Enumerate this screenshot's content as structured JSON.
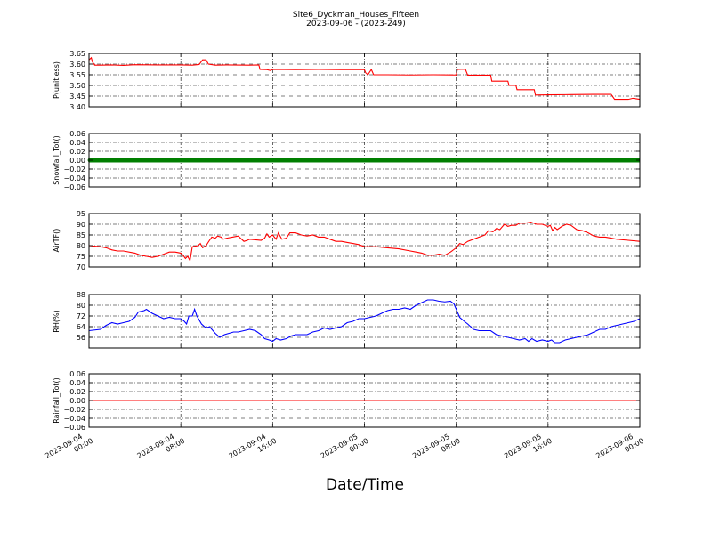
{
  "figure": {
    "title_line1": "Site6_Dyckman_Houses_Fifteen",
    "title_line2": "2023-09-06 - (2023-249)",
    "xlabel": "Date/Time"
  },
  "chart_data": {
    "type": "line",
    "x_ticks": [
      {
        "value": 0,
        "line1": "2023-09-04",
        "line2": "00:00"
      },
      {
        "value": 8,
        "line1": "2023-09-04",
        "line2": "08:00"
      },
      {
        "value": 16,
        "line1": "2023-09-04",
        "line2": "16:00"
      },
      {
        "value": 24,
        "line1": "2023-09-05",
        "line2": "00:00"
      },
      {
        "value": 32,
        "line1": "2023-09-05",
        "line2": "08:00"
      },
      {
        "value": 40,
        "line1": "2023-09-05",
        "line2": "16:00"
      },
      {
        "value": 48,
        "line1": "2023-09-06",
        "line2": "00:00"
      }
    ],
    "xlim": [
      0,
      48
    ],
    "grid": true,
    "panels": [
      {
        "ylabel": "P(unitless)",
        "ylim": [
          3.4,
          3.65
        ],
        "yticks": [
          "3.65",
          "3.60",
          "3.55",
          "3.50",
          "3.45",
          "3.40"
        ],
        "ytick_values": [
          3.65,
          3.6,
          3.55,
          3.5,
          3.45,
          3.4
        ],
        "color": "#ff0000",
        "marker": "none",
        "points": [
          [
            0,
            3.62
          ],
          [
            0.2,
            3.63
          ],
          [
            0.3,
            3.61
          ],
          [
            0.5,
            3.595
          ],
          [
            1,
            3.595
          ],
          [
            2,
            3.596
          ],
          [
            3,
            3.594
          ],
          [
            4,
            3.597
          ],
          [
            6,
            3.596
          ],
          [
            8,
            3.596
          ],
          [
            9,
            3.595
          ],
          [
            9.6,
            3.598
          ],
          [
            9.9,
            3.62
          ],
          [
            10.2,
            3.62
          ],
          [
            10.4,
            3.6
          ],
          [
            11,
            3.595
          ],
          [
            12,
            3.596
          ],
          [
            14,
            3.595
          ],
          [
            14.8,
            3.596
          ],
          [
            14.9,
            3.575
          ],
          [
            15.5,
            3.574
          ],
          [
            15.8,
            3.57
          ],
          [
            16,
            3.575
          ],
          [
            18,
            3.574
          ],
          [
            20,
            3.575
          ],
          [
            22,
            3.574
          ],
          [
            24,
            3.574
          ],
          [
            24.1,
            3.56
          ],
          [
            24.3,
            3.55
          ],
          [
            24.6,
            3.575
          ],
          [
            24.8,
            3.55
          ],
          [
            26,
            3.55
          ],
          [
            28,
            3.549
          ],
          [
            30,
            3.55
          ],
          [
            32,
            3.549
          ],
          [
            32.1,
            3.575
          ],
          [
            32.8,
            3.576
          ],
          [
            33,
            3.548
          ],
          [
            35,
            3.548
          ],
          [
            35.1,
            3.52
          ],
          [
            36.5,
            3.52
          ],
          [
            36.6,
            3.5
          ],
          [
            37.2,
            3.5
          ],
          [
            37.3,
            3.48
          ],
          [
            38.8,
            3.48
          ],
          [
            38.9,
            3.455
          ],
          [
            40,
            3.456
          ],
          [
            42,
            3.457
          ],
          [
            44,
            3.458
          ],
          [
            45.5,
            3.458
          ],
          [
            45.8,
            3.435
          ],
          [
            47,
            3.435
          ],
          [
            47.4,
            3.44
          ],
          [
            48,
            3.435
          ]
        ]
      },
      {
        "ylabel": "Snowfall_Tot()",
        "ylim": [
          -0.06,
          0.06
        ],
        "yticks": [
          "0.06",
          "0.04",
          "0.02",
          "0.00",
          "−0.02",
          "−0.04",
          "−0.06"
        ],
        "ytick_values": [
          0.06,
          0.04,
          0.02,
          0.0,
          -0.02,
          -0.04,
          -0.06
        ],
        "color": "#007f00",
        "marker": "circle",
        "constant": 0.0
      },
      {
        "ylabel": "AirTF()",
        "ylim": [
          70,
          95
        ],
        "yticks": [
          "95",
          "90",
          "85",
          "80",
          "75",
          "70"
        ],
        "ytick_values": [
          95,
          90,
          85,
          80,
          75,
          70
        ],
        "color": "#ff0000",
        "marker": "none",
        "points": [
          [
            0,
            80
          ],
          [
            1,
            79.5
          ],
          [
            1.5,
            79
          ],
          [
            2,
            78
          ],
          [
            2.5,
            77.5
          ],
          [
            3,
            77.5
          ],
          [
            4,
            76.5
          ],
          [
            4.5,
            75.5
          ],
          [
            5,
            75
          ],
          [
            5.5,
            74.5
          ],
          [
            6,
            75
          ],
          [
            6.5,
            76
          ],
          [
            7,
            77
          ],
          [
            7.5,
            77
          ],
          [
            8,
            76.5
          ],
          [
            8.2,
            75.5
          ],
          [
            8.4,
            74
          ],
          [
            8.6,
            75
          ],
          [
            8.8,
            73
          ],
          [
            9,
            79.5
          ],
          [
            9.5,
            80
          ],
          [
            9.7,
            81
          ],
          [
            9.9,
            79
          ],
          [
            10.2,
            80
          ],
          [
            10.5,
            82.5
          ],
          [
            10.7,
            84
          ],
          [
            11,
            83.5
          ],
          [
            11.2,
            84.5
          ],
          [
            11.5,
            84
          ],
          [
            11.7,
            83
          ],
          [
            12,
            83.5
          ],
          [
            12.5,
            84
          ],
          [
            13,
            84.5
          ],
          [
            13.5,
            82
          ],
          [
            13.8,
            82.5
          ],
          [
            14,
            83
          ],
          [
            15,
            82.5
          ],
          [
            15.3,
            83.5
          ],
          [
            15.5,
            85.5
          ],
          [
            15.7,
            84
          ],
          [
            16,
            85
          ],
          [
            16.3,
            83
          ],
          [
            16.5,
            86
          ],
          [
            16.8,
            83
          ],
          [
            17.2,
            83.5
          ],
          [
            17.5,
            86
          ],
          [
            18,
            86
          ],
          [
            18.5,
            85
          ],
          [
            19,
            84.5
          ],
          [
            19.5,
            85
          ],
          [
            20,
            84
          ],
          [
            20.5,
            84
          ],
          [
            21,
            83
          ],
          [
            21.5,
            82
          ],
          [
            22,
            82
          ],
          [
            22.5,
            81.5
          ],
          [
            23,
            81
          ],
          [
            23.5,
            80.5
          ],
          [
            24,
            79.5
          ],
          [
            25,
            79.5
          ],
          [
            26,
            79
          ],
          [
            27,
            78.5
          ],
          [
            28,
            77.5
          ],
          [
            28.5,
            77
          ],
          [
            29,
            76.5
          ],
          [
            29.5,
            75.5
          ],
          [
            30,
            75.5
          ],
          [
            30.5,
            76
          ],
          [
            31,
            75.5
          ],
          [
            31.5,
            77
          ],
          [
            32,
            79
          ],
          [
            32.3,
            81
          ],
          [
            32.6,
            80.5
          ],
          [
            33,
            82
          ],
          [
            33.5,
            83
          ],
          [
            34,
            84
          ],
          [
            34.5,
            85
          ],
          [
            34.8,
            87
          ],
          [
            35.2,
            86.5
          ],
          [
            35.5,
            88
          ],
          [
            35.8,
            87.5
          ],
          [
            36.2,
            90
          ],
          [
            36.5,
            89
          ],
          [
            36.8,
            89.5
          ],
          [
            37.2,
            89.5
          ],
          [
            37.5,
            90.5
          ],
          [
            38,
            90.5
          ],
          [
            38.5,
            91
          ],
          [
            39,
            90
          ],
          [
            39.5,
            90
          ],
          [
            40,
            89
          ],
          [
            40.2,
            89.5
          ],
          [
            40.4,
            87
          ],
          [
            40.6,
            88.5
          ],
          [
            40.8,
            87.5
          ],
          [
            41.2,
            89
          ],
          [
            41.6,
            90
          ],
          [
            42,
            89.5
          ],
          [
            42.5,
            87.5
          ],
          [
            43,
            87
          ],
          [
            43.5,
            86
          ],
          [
            44,
            84.5
          ],
          [
            44.5,
            84
          ],
          [
            45,
            84
          ],
          [
            45.5,
            83.5
          ],
          [
            46,
            83
          ],
          [
            47,
            82.5
          ],
          [
            48,
            82
          ]
        ]
      },
      {
        "ylabel": "RH(%)",
        "ylim": [
          48,
          88
        ],
        "yticks": [
          "88",
          "80",
          "72",
          "64",
          "56"
        ],
        "ytick_values": [
          88,
          80,
          72,
          64,
          56
        ],
        "color": "#0000ff",
        "marker": "none",
        "points": [
          [
            0,
            61
          ],
          [
            1,
            62
          ],
          [
            1.5,
            65
          ],
          [
            2,
            67
          ],
          [
            2.5,
            66
          ],
          [
            3,
            67
          ],
          [
            3.5,
            68
          ],
          [
            4,
            71
          ],
          [
            4.3,
            75
          ],
          [
            4.8,
            76
          ],
          [
            5,
            77
          ],
          [
            5.5,
            74
          ],
          [
            6,
            72
          ],
          [
            6.5,
            70
          ],
          [
            7,
            71
          ],
          [
            7.5,
            70
          ],
          [
            8,
            70
          ],
          [
            8.3,
            68
          ],
          [
            8.5,
            66
          ],
          [
            8.7,
            72
          ],
          [
            9,
            72
          ],
          [
            9.2,
            77
          ],
          [
            9.4,
            72
          ],
          [
            9.8,
            66
          ],
          [
            10.2,
            63
          ],
          [
            10.5,
            64
          ],
          [
            11,
            59
          ],
          [
            11.4,
            56
          ],
          [
            11.8,
            58
          ],
          [
            12.2,
            59
          ],
          [
            12.6,
            60
          ],
          [
            13,
            60
          ],
          [
            13.5,
            61
          ],
          [
            14,
            62
          ],
          [
            14.5,
            61
          ],
          [
            15,
            58
          ],
          [
            15.3,
            55
          ],
          [
            15.7,
            54
          ],
          [
            16,
            53
          ],
          [
            16.3,
            55
          ],
          [
            16.7,
            54
          ],
          [
            17.2,
            55
          ],
          [
            17.6,
            57
          ],
          [
            18,
            58
          ],
          [
            18.5,
            58
          ],
          [
            19,
            58
          ],
          [
            19.5,
            60
          ],
          [
            20,
            61
          ],
          [
            20.5,
            63
          ],
          [
            21,
            62
          ],
          [
            21.5,
            63
          ],
          [
            22,
            64
          ],
          [
            22.5,
            67
          ],
          [
            23,
            68
          ],
          [
            23.5,
            70
          ],
          [
            24,
            70
          ],
          [
            24.5,
            71
          ],
          [
            25,
            72
          ],
          [
            25.5,
            74
          ],
          [
            26,
            76
          ],
          [
            26.5,
            77
          ],
          [
            27,
            77
          ],
          [
            27.5,
            78
          ],
          [
            28,
            77
          ],
          [
            28.5,
            80
          ],
          [
            29,
            82
          ],
          [
            29.5,
            84
          ],
          [
            30,
            84
          ],
          [
            30.5,
            83
          ],
          [
            31,
            82.5
          ],
          [
            31.5,
            83
          ],
          [
            31.8,
            81
          ],
          [
            32,
            77
          ],
          [
            32.3,
            71
          ],
          [
            32.7,
            68
          ],
          [
            33,
            66
          ],
          [
            33.5,
            62
          ],
          [
            34,
            61
          ],
          [
            35,
            61
          ],
          [
            35.5,
            58
          ],
          [
            36,
            57
          ],
          [
            36.5,
            56
          ],
          [
            37,
            55
          ],
          [
            37.5,
            54
          ],
          [
            38,
            55
          ],
          [
            38.3,
            53
          ],
          [
            38.6,
            55
          ],
          [
            39,
            53
          ],
          [
            39.5,
            54
          ],
          [
            40,
            53
          ],
          [
            40.3,
            54
          ],
          [
            40.6,
            52
          ],
          [
            41,
            52
          ],
          [
            41.5,
            54
          ],
          [
            42,
            55
          ],
          [
            42.5,
            56
          ],
          [
            43,
            57
          ],
          [
            43.5,
            58
          ],
          [
            44,
            60
          ],
          [
            44.5,
            62
          ],
          [
            45,
            62
          ],
          [
            45.5,
            64
          ],
          [
            46,
            65
          ],
          [
            46.5,
            66
          ],
          [
            47,
            67
          ],
          [
            47.5,
            68
          ],
          [
            48,
            70
          ]
        ]
      },
      {
        "ylabel": "Rainfall_Tot()",
        "ylim": [
          -0.06,
          0.06
        ],
        "yticks": [
          "0.06",
          "0.04",
          "0.02",
          "0.00",
          "−0.02",
          "−0.04",
          "−0.06"
        ],
        "ytick_values": [
          0.06,
          0.04,
          0.02,
          0.0,
          -0.02,
          -0.04,
          -0.06
        ],
        "color": "#ff0000",
        "marker": "none",
        "constant": 0.0
      }
    ]
  }
}
